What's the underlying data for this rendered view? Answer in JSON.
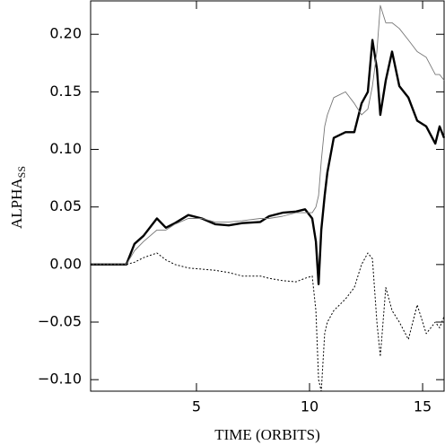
{
  "chart_data": {
    "type": "line",
    "xlabel": "TIME (ORBITS)",
    "ylabel": "ALPHA",
    "ylabel_sub": "SS",
    "x": [
      0.32,
      1.9,
      2.26,
      2.66,
      3.25,
      3.65,
      4.05,
      4.64,
      5.24,
      5.83,
      6.43,
      7.02,
      7.82,
      8.21,
      8.81,
      9.4,
      9.8,
      10.12,
      10.28,
      10.4,
      10.52,
      10.67,
      10.79,
      11.07,
      11.59,
      11.98,
      12.3,
      12.58,
      12.78,
      12.98,
      13.13,
      13.37,
      13.65,
      13.97,
      14.37,
      14.76,
      15.16,
      15.56,
      15.75,
      15.95
    ],
    "series": [
      {
        "color": "#000000",
        "width": 2.4,
        "dash": "none",
        "values": [
          0,
          0,
          0.018,
          0.025,
          0.04,
          0.032,
          0.036,
          0.043,
          0.04,
          0.035,
          0.034,
          0.036,
          0.037,
          0.042,
          0.045,
          0.046,
          0.048,
          0.04,
          0.02,
          -0.017,
          0.03,
          0.06,
          0.08,
          0.11,
          0.115,
          0.115,
          0.14,
          0.15,
          0.195,
          0.17,
          0.13,
          0.16,
          0.185,
          0.155,
          0.145,
          0.125,
          0.12,
          0.105,
          0.12,
          0.11
        ]
      },
      {
        "color": "#777777",
        "width": 0.9,
        "dash": "none",
        "values": [
          0,
          0,
          0.012,
          0.02,
          0.03,
          0.03,
          0.035,
          0.04,
          0.04,
          0.037,
          0.037,
          0.038,
          0.04,
          0.04,
          0.042,
          0.045,
          0.045,
          0.045,
          0.05,
          0.06,
          0.09,
          0.12,
          0.13,
          0.145,
          0.15,
          0.14,
          0.13,
          0.135,
          0.155,
          0.185,
          0.225,
          0.21,
          0.21,
          0.205,
          0.195,
          0.185,
          0.18,
          0.165,
          0.165,
          0.16
        ]
      },
      {
        "color": "#000000",
        "width": 1,
        "dash": "2 2",
        "values": [
          0,
          0,
          0.002,
          0.006,
          0.01,
          0.004,
          0,
          -0.003,
          -0.004,
          -0.005,
          -0.007,
          -0.01,
          -0.01,
          -0.012,
          -0.014,
          -0.015,
          -0.012,
          -0.01,
          -0.04,
          -0.1,
          -0.11,
          -0.06,
          -0.05,
          -0.04,
          -0.03,
          -0.02,
          0,
          0.01,
          0.005,
          -0.05,
          -0.08,
          -0.02,
          -0.04,
          -0.05,
          -0.065,
          -0.035,
          -0.06,
          -0.05,
          -0.055,
          -0.045
        ]
      }
    ],
    "xlim": [
      0.32,
      15.95
    ],
    "ylim": [
      -0.11,
      0.229
    ],
    "xticks": [
      5,
      10,
      15
    ],
    "yticks": [
      {
        "value": -0.1,
        "label": "−0.10"
      },
      {
        "value": -0.05,
        "label": "−0.05"
      },
      {
        "value": 0,
        "label": "0.00"
      },
      {
        "value": 0.05,
        "label": "0.05"
      },
      {
        "value": 0.1,
        "label": "0.10"
      },
      {
        "value": 0.15,
        "label": "0.15"
      },
      {
        "value": 0.2,
        "label": "0.20"
      }
    ]
  }
}
